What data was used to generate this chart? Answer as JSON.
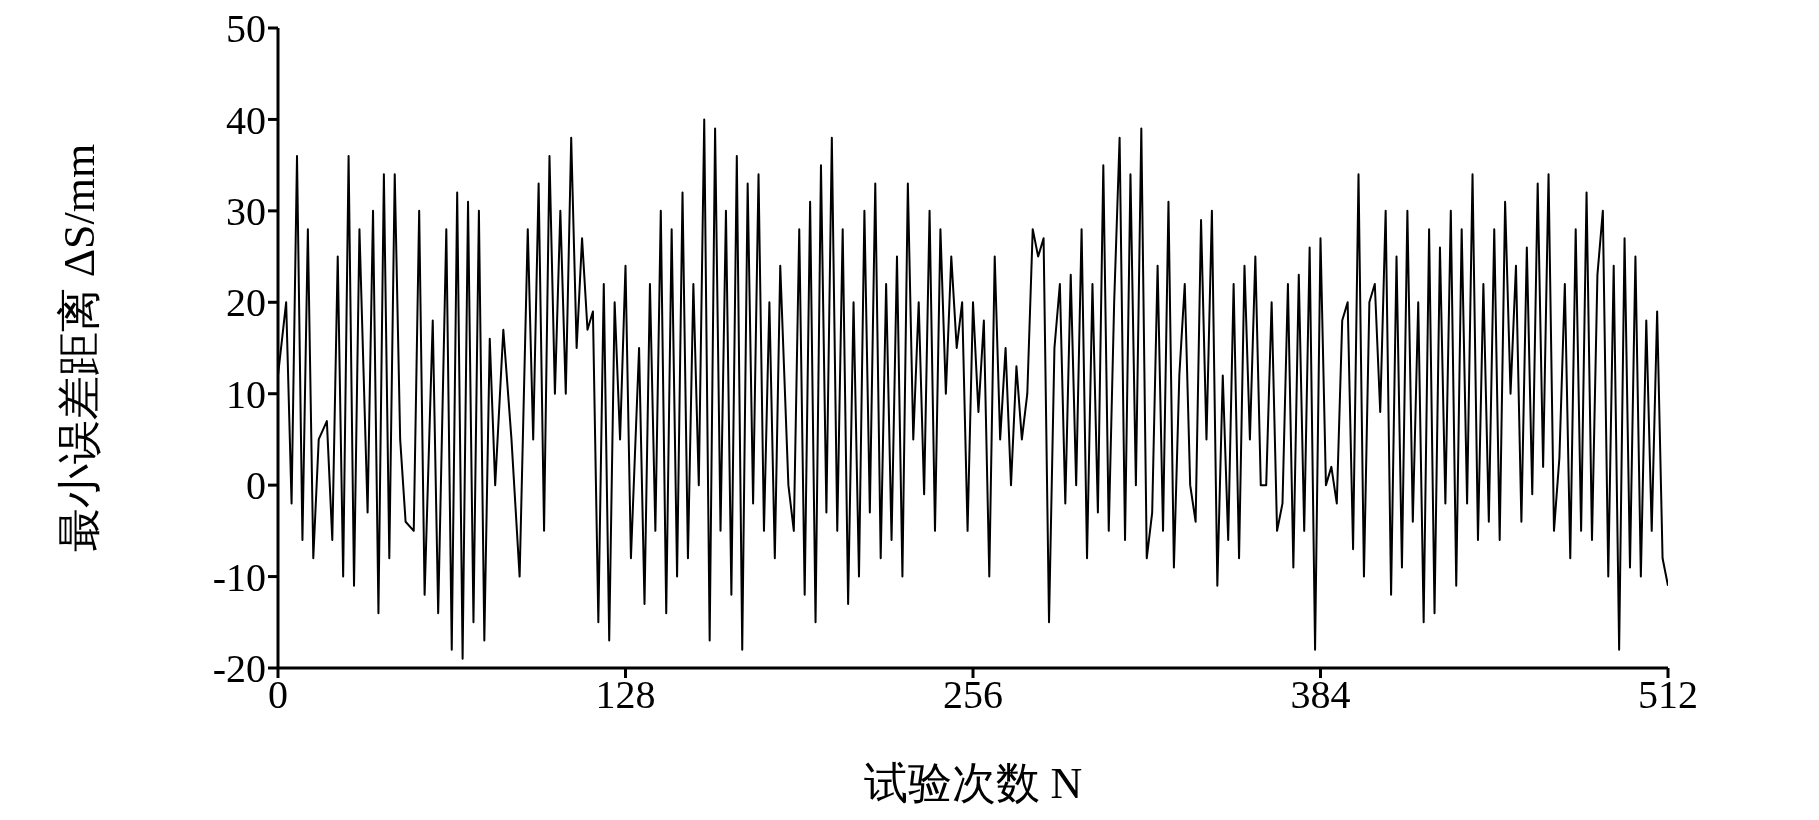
{
  "chart_data": {
    "type": "line",
    "xlabel": "试验次数 N",
    "ylabel": "最小误差距离 ΔS/mm",
    "xlim": [
      0,
      512
    ],
    "xticks": [
      0,
      128,
      256,
      384,
      512
    ],
    "ylim": [
      -20,
      50
    ],
    "yticks": [
      -20,
      -10,
      0,
      10,
      20,
      30,
      40,
      50
    ],
    "grid": false,
    "legend": false,
    "marker": "none",
    "line_style": "solid",
    "series": [
      {
        "color": "#000000",
        "x": [
          0,
          3,
          5,
          7,
          9,
          11,
          13,
          15,
          18,
          20,
          22,
          24,
          26,
          28,
          30,
          33,
          35,
          37,
          39,
          41,
          43,
          45,
          47,
          50,
          52,
          54,
          57,
          59,
          62,
          64,
          66,
          68,
          70,
          72,
          74,
          76,
          78,
          80,
          83,
          86,
          89,
          92,
          94,
          96,
          98,
          100,
          102,
          104,
          106,
          108,
          110,
          112,
          114,
          116,
          118,
          120,
          122,
          124,
          126,
          128,
          130,
          133,
          135,
          137,
          139,
          141,
          143,
          145,
          147,
          149,
          151,
          153,
          155,
          157,
          159,
          161,
          163,
          165,
          167,
          169,
          171,
          173,
          175,
          177,
          179,
          181,
          183,
          185,
          188,
          190,
          192,
          194,
          196,
          198,
          200,
          202,
          204,
          206,
          208,
          210,
          212,
          214,
          216,
          218,
          220,
          222,
          224,
          226,
          228,
          230,
          232,
          234,
          236,
          238,
          240,
          242,
          244,
          246,
          248,
          250,
          252,
          254,
          256,
          258,
          260,
          262,
          264,
          266,
          268,
          270,
          272,
          274,
          276,
          278,
          280,
          282,
          284,
          286,
          288,
          290,
          292,
          294,
          296,
          298,
          300,
          302,
          304,
          306,
          308,
          310,
          312,
          314,
          316,
          318,
          320,
          322,
          324,
          326,
          328,
          330,
          332,
          334,
          336,
          338,
          340,
          342,
          344,
          346,
          348,
          350,
          352,
          354,
          356,
          358,
          360,
          362,
          364,
          366,
          368,
          370,
          372,
          374,
          376,
          378,
          380,
          382,
          384,
          386,
          388,
          390,
          392,
          394,
          396,
          398,
          400,
          402,
          404,
          406,
          408,
          410,
          412,
          414,
          416,
          418,
          420,
          422,
          424,
          426,
          428,
          430,
          432,
          434,
          436,
          438,
          440,
          442,
          444,
          446,
          448,
          450,
          452,
          454,
          456,
          458,
          460,
          462,
          464,
          466,
          468,
          470,
          472,
          474,
          476,
          478,
          480,
          482,
          484,
          486,
          488,
          490,
          492,
          494,
          496,
          498,
          500,
          502,
          504,
          506,
          508,
          510,
          512
        ],
        "values": [
          12,
          20,
          -2,
          36,
          -6,
          28,
          -8,
          5,
          7,
          -6,
          25,
          -10,
          36,
          -11,
          28,
          -3,
          30,
          -14,
          34,
          -8,
          34,
          5,
          -4,
          -5,
          30,
          -12,
          18,
          -14,
          28,
          -18,
          32,
          -19,
          31,
          -15,
          30,
          -17,
          16,
          0,
          17,
          5,
          -10,
          28,
          5,
          33,
          -5,
          36,
          10,
          30,
          10,
          38,
          15,
          27,
          17,
          19,
          -15,
          22,
          -17,
          20,
          5,
          24,
          -8,
          15,
          -13,
          22,
          -5,
          30,
          -14,
          28,
          -10,
          32,
          -8,
          22,
          0,
          40,
          -17,
          39,
          -5,
          30,
          -12,
          36,
          -18,
          33,
          -2,
          34,
          -5,
          20,
          -8,
          24,
          0,
          -5,
          28,
          -12,
          31,
          -15,
          35,
          -3,
          38,
          -5,
          28,
          -13,
          20,
          -10,
          30,
          -3,
          33,
          -8,
          22,
          -6,
          25,
          -10,
          33,
          5,
          20,
          -1,
          30,
          -5,
          28,
          10,
          25,
          15,
          20,
          -5,
          20,
          8,
          18,
          -10,
          25,
          5,
          15,
          0,
          13,
          5,
          10,
          28,
          25,
          27,
          -15,
          15,
          22,
          -2,
          23,
          0,
          28,
          -8,
          22,
          -3,
          35,
          -5,
          20,
          38,
          -6,
          34,
          0,
          39,
          -8,
          -3,
          24,
          -5,
          31,
          -9,
          12,
          22,
          0,
          -4,
          29,
          5,
          30,
          -11,
          12,
          -6,
          22,
          -8,
          24,
          5,
          25,
          0,
          0,
          20,
          -5,
          -2,
          22,
          -9,
          23,
          -5,
          26,
          -18,
          27,
          0,
          2,
          -2,
          18,
          20,
          -7,
          34,
          -10,
          20,
          22,
          8,
          30,
          -12,
          25,
          -9,
          30,
          -4,
          20,
          -15,
          28,
          -14,
          26,
          -2,
          30,
          -11,
          28,
          -2,
          34,
          -6,
          22,
          -4,
          28,
          -6,
          31,
          10,
          24,
          -4,
          26,
          -1,
          33,
          2,
          34,
          -5,
          3,
          22,
          -8,
          28,
          -5,
          32,
          -6,
          23,
          30,
          -10,
          24,
          -18,
          27,
          -9,
          25,
          -10,
          18,
          -5,
          19,
          -8,
          -11
        ]
      }
    ]
  }
}
